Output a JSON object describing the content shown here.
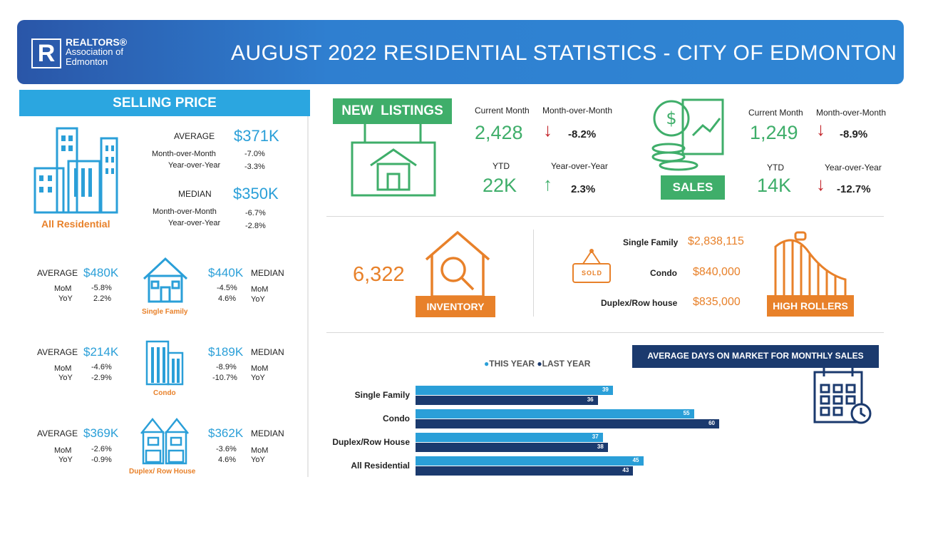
{
  "header": {
    "logo_title": "REALTORS®",
    "logo_line2": "Association of",
    "logo_line3": "Edmonton",
    "title": "AUGUST 2022 RESIDENTIAL STATISTICS - CITY OF EDMONTON"
  },
  "selling_price": {
    "band": "SELLING PRICE",
    "all": {
      "label": "All Residential",
      "avg_label": "AVERAGE",
      "avg": "$371K",
      "mom_label": "Month-over-Month",
      "avg_mom": "-7.0%",
      "yoy_label": "Year-over-Year",
      "avg_yoy": "-3.3%",
      "med_label": "MEDIAN",
      "med": "$350K",
      "med_mom": "-6.7%",
      "med_yoy": "-2.8%"
    },
    "types": [
      {
        "label": "Single Family",
        "avg": "$480K",
        "avg_mom": "-5.8%",
        "avg_yoy": "2.2%",
        "med": "$440K",
        "med_mom": "-4.5%",
        "med_yoy": "4.6%"
      },
      {
        "label": "Condo",
        "avg": "$214K",
        "avg_mom": "-4.6%",
        "avg_yoy": "-2.9%",
        "med": "$189K",
        "med_mom": "-8.9%",
        "med_yoy": "-10.7%"
      },
      {
        "label": "Duplex/ Row House",
        "avg": "$369K",
        "avg_mom": "-2.6%",
        "avg_yoy": "-0.9%",
        "med": "$362K",
        "med_mom": "-3.6%",
        "med_yoy": "4.6%"
      }
    ],
    "avg_word": "AVERAGE",
    "med_word": "MEDIAN",
    "mom": "MoM",
    "yoy": "YoY"
  },
  "new_listings": {
    "label": "NEW  LISTINGS",
    "cm_label": "Current Month",
    "cm": "2,428",
    "mom_label": "Month-over-Month",
    "mom": "-8.2%",
    "ytd_label": "YTD",
    "ytd": "22K",
    "yoy_label": "Year-over-Year",
    "yoy": "2.3%"
  },
  "sales": {
    "label": "SALES",
    "cm_label": "Current Month",
    "cm": "1,249",
    "mom_label": "Month-over-Month",
    "mom": "-8.9%",
    "ytd_label": "YTD",
    "ytd": "14K",
    "yoy_label": "Year-over-Year",
    "yoy": "-12.7%"
  },
  "inventory": {
    "value": "6,322",
    "label": "INVENTORY"
  },
  "high_rollers": {
    "label": "HIGH ROLLERS",
    "sold_sign": "SOLD",
    "items": [
      {
        "type": "Single Family",
        "price": "$2,838,115"
      },
      {
        "type": "Condo",
        "price": "$840,000"
      },
      {
        "type": "Duplex/Row house",
        "price": "$835,000"
      }
    ]
  },
  "dom_title": "AVERAGE DAYS ON MARKET FOR MONTHLY SALES",
  "chart_data": {
    "type": "bar",
    "orientation": "horizontal",
    "categories": [
      "Single Family",
      "Condo",
      "Duplex/Row House",
      "All Residential"
    ],
    "series": [
      {
        "name": "THIS YEAR",
        "values": [
          39,
          55,
          37,
          45
        ],
        "color": "#2a9fd8"
      },
      {
        "name": "LAST YEAR",
        "values": [
          36,
          60,
          38,
          43
        ],
        "color": "#1b3a6e"
      }
    ],
    "legend": "top",
    "xlim": [
      0,
      60
    ]
  }
}
